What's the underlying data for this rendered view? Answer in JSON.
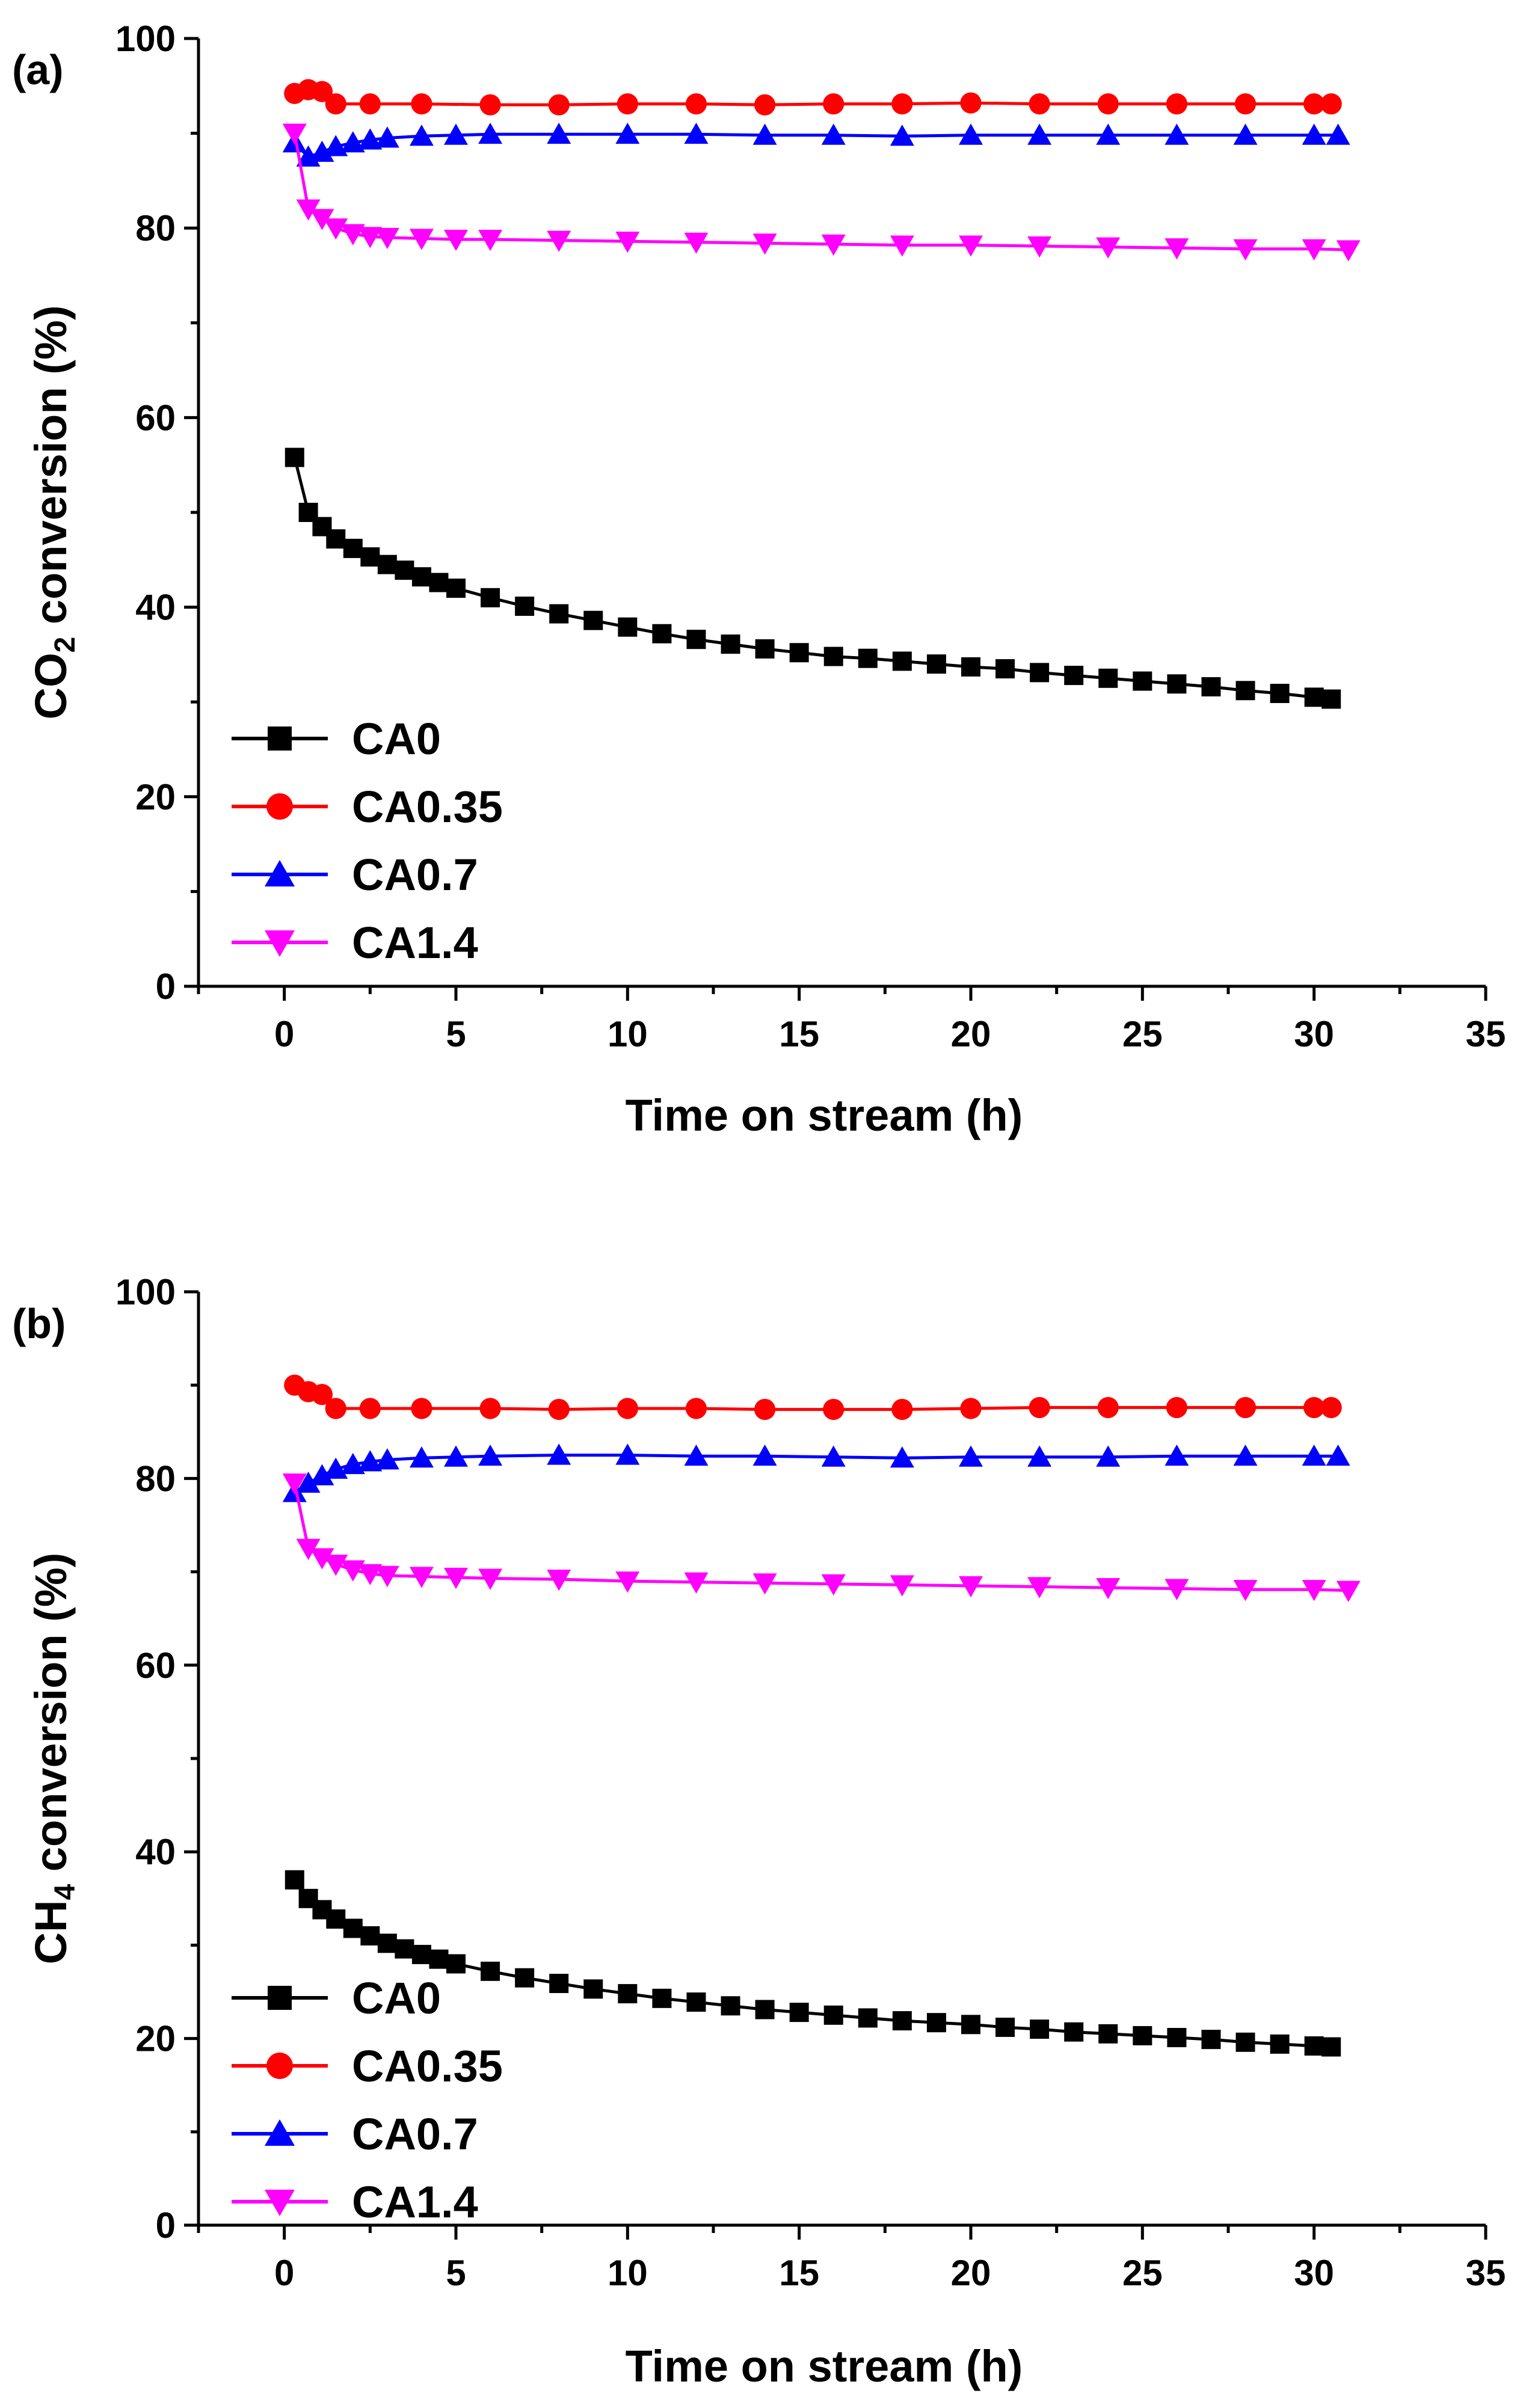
{
  "chart_data": [
    {
      "type": "line",
      "panel_label": "(a)",
      "xlabel": "Time on stream (h)",
      "ylabel_parts": [
        "CO",
        "2",
        " conversion (%)"
      ],
      "xlim": [
        -2.5,
        35
      ],
      "ylim": [
        0,
        100
      ],
      "xticks": [
        0,
        5,
        10,
        15,
        20,
        25,
        30,
        35
      ],
      "yticks": [
        0,
        20,
        40,
        60,
        80,
        100
      ],
      "tick_labels_x": [
        "0",
        "5",
        "10",
        "15",
        "20",
        "25",
        "30",
        "35"
      ],
      "tick_labels_y": [
        "0",
        "20",
        "40",
        "60",
        "80",
        "100"
      ],
      "legend_position": "lower-left",
      "series": [
        {
          "name": "CA0",
          "color": "#000000",
          "marker": "square",
          "x": [
            0.3,
            0.7,
            1.1,
            1.5,
            2.0,
            2.5,
            3.0,
            3.5,
            4.0,
            4.5,
            5.0,
            6.0,
            7.0,
            8.0,
            9.0,
            10.0,
            11.0,
            12.0,
            13.0,
            14.0,
            15.0,
            16.0,
            17.0,
            18.0,
            19.0,
            20.0,
            21.0,
            22.0,
            23.0,
            24.0,
            25.0,
            26.0,
            27.0,
            28.0,
            29.0,
            30.0,
            30.5
          ],
          "values": [
            55.8,
            50.0,
            48.5,
            47.2,
            46.2,
            45.3,
            44.5,
            43.9,
            43.2,
            42.6,
            42.0,
            41.0,
            40.1,
            39.3,
            38.6,
            37.9,
            37.2,
            36.6,
            36.1,
            35.6,
            35.2,
            34.8,
            34.6,
            34.3,
            34.0,
            33.7,
            33.5,
            33.1,
            32.8,
            32.5,
            32.2,
            31.9,
            31.6,
            31.2,
            30.9,
            30.5,
            30.3
          ]
        },
        {
          "name": "CA0.35",
          "color": "#ff0000",
          "marker": "circle",
          "x": [
            0.3,
            0.7,
            1.1,
            1.5,
            2.5,
            4.0,
            6.0,
            8.0,
            10.0,
            12.0,
            14.0,
            16.0,
            18.0,
            20.0,
            22.0,
            24.0,
            26.0,
            28.0,
            30.0,
            30.5
          ],
          "values": [
            94.2,
            94.6,
            94.4,
            93.1,
            93.1,
            93.1,
            93.0,
            93.0,
            93.1,
            93.1,
            93.0,
            93.1,
            93.1,
            93.2,
            93.1,
            93.1,
            93.1,
            93.1,
            93.1,
            93.1
          ]
        },
        {
          "name": "CA0.7",
          "color": "#0000ff",
          "marker": "triangle-up",
          "x": [
            0.3,
            0.7,
            1.1,
            1.5,
            2.0,
            2.5,
            3.0,
            4.0,
            5.0,
            6.0,
            8.0,
            10.0,
            12.0,
            14.0,
            16.0,
            18.0,
            20.0,
            22.0,
            24.0,
            26.0,
            28.0,
            30.0,
            30.7
          ],
          "values": [
            89.0,
            87.5,
            88.0,
            88.6,
            89.0,
            89.3,
            89.5,
            89.7,
            89.8,
            89.9,
            89.9,
            89.9,
            89.9,
            89.8,
            89.8,
            89.7,
            89.8,
            89.8,
            89.8,
            89.8,
            89.8,
            89.8,
            89.8
          ]
        },
        {
          "name": "CA1.4",
          "color": "#ff00ff",
          "marker": "triangle-down",
          "x": [
            0.3,
            0.7,
            1.1,
            1.5,
            2.0,
            2.5,
            3.0,
            4.0,
            5.0,
            6.0,
            8.0,
            10.0,
            12.0,
            14.0,
            16.0,
            18.0,
            20.0,
            22.0,
            24.0,
            26.0,
            28.0,
            30.0,
            31.0
          ],
          "values": [
            90.0,
            82.0,
            81.0,
            80.0,
            79.4,
            79.1,
            79.0,
            78.9,
            78.8,
            78.8,
            78.7,
            78.6,
            78.5,
            78.4,
            78.3,
            78.2,
            78.2,
            78.1,
            78.0,
            77.9,
            77.8,
            77.8,
            77.7
          ]
        }
      ]
    },
    {
      "type": "line",
      "panel_label": "(b)",
      "xlabel": "Time on stream (h)",
      "ylabel_parts": [
        "CH",
        "4",
        " conversion (%)"
      ],
      "xlim": [
        -2.5,
        35
      ],
      "ylim": [
        0,
        100
      ],
      "xticks": [
        0,
        5,
        10,
        15,
        20,
        25,
        30,
        35
      ],
      "yticks": [
        0,
        20,
        40,
        60,
        80,
        100
      ],
      "tick_labels_x": [
        "0",
        "5",
        "10",
        "15",
        "20",
        "25",
        "30",
        "35"
      ],
      "tick_labels_y": [
        "0",
        "20",
        "40",
        "60",
        "80",
        "100"
      ],
      "legend_position": "lower-left",
      "series": [
        {
          "name": "CA0",
          "color": "#000000",
          "marker": "square",
          "x": [
            0.3,
            0.7,
            1.1,
            1.5,
            2.0,
            2.5,
            3.0,
            3.5,
            4.0,
            4.5,
            5.0,
            6.0,
            7.0,
            8.0,
            9.0,
            10.0,
            11.0,
            12.0,
            13.0,
            14.0,
            15.0,
            16.0,
            17.0,
            18.0,
            19.0,
            20.0,
            21.0,
            22.0,
            23.0,
            24.0,
            25.0,
            26.0,
            27.0,
            28.0,
            29.0,
            30.0,
            30.5
          ],
          "values": [
            37.0,
            35.0,
            33.8,
            32.8,
            31.8,
            31.0,
            30.2,
            29.6,
            29.0,
            28.5,
            28.0,
            27.2,
            26.5,
            25.9,
            25.3,
            24.8,
            24.3,
            23.9,
            23.5,
            23.1,
            22.8,
            22.5,
            22.2,
            21.9,
            21.7,
            21.5,
            21.2,
            21.0,
            20.7,
            20.5,
            20.3,
            20.1,
            19.9,
            19.6,
            19.4,
            19.2,
            19.1
          ]
        },
        {
          "name": "CA0.35",
          "color": "#ff0000",
          "marker": "circle",
          "x": [
            0.3,
            0.7,
            1.1,
            1.5,
            2.5,
            4.0,
            6.0,
            8.0,
            10.0,
            12.0,
            14.0,
            16.0,
            18.0,
            20.0,
            22.0,
            24.0,
            26.0,
            28.0,
            30.0,
            30.5
          ],
          "values": [
            90.0,
            89.3,
            89.0,
            87.5,
            87.5,
            87.5,
            87.5,
            87.4,
            87.5,
            87.5,
            87.4,
            87.4,
            87.4,
            87.5,
            87.6,
            87.6,
            87.6,
            87.6,
            87.6,
            87.6
          ]
        },
        {
          "name": "CA0.7",
          "color": "#0000ff",
          "marker": "triangle-up",
          "x": [
            0.3,
            0.7,
            1.1,
            1.5,
            2.0,
            2.5,
            3.0,
            4.0,
            5.0,
            6.0,
            8.0,
            10.0,
            12.0,
            14.0,
            16.0,
            18.0,
            20.0,
            22.0,
            24.0,
            26.0,
            28.0,
            30.0,
            30.7
          ],
          "values": [
            78.5,
            79.5,
            80.3,
            81.0,
            81.5,
            81.8,
            82.0,
            82.2,
            82.3,
            82.4,
            82.5,
            82.5,
            82.4,
            82.4,
            82.3,
            82.2,
            82.3,
            82.3,
            82.3,
            82.4,
            82.4,
            82.4,
            82.4
          ]
        },
        {
          "name": "CA1.4",
          "color": "#ff00ff",
          "marker": "triangle-down",
          "x": [
            0.3,
            0.7,
            1.1,
            1.5,
            2.0,
            2.5,
            3.0,
            4.0,
            5.0,
            6.0,
            8.0,
            10.0,
            12.0,
            14.0,
            16.0,
            18.0,
            20.0,
            22.0,
            24.0,
            26.0,
            28.0,
            30.0,
            31.0
          ],
          "values": [
            79.5,
            72.5,
            71.5,
            70.8,
            70.2,
            69.8,
            69.6,
            69.5,
            69.4,
            69.3,
            69.2,
            69.0,
            68.9,
            68.8,
            68.7,
            68.6,
            68.5,
            68.4,
            68.3,
            68.2,
            68.1,
            68.1,
            68.0
          ]
        }
      ]
    }
  ]
}
